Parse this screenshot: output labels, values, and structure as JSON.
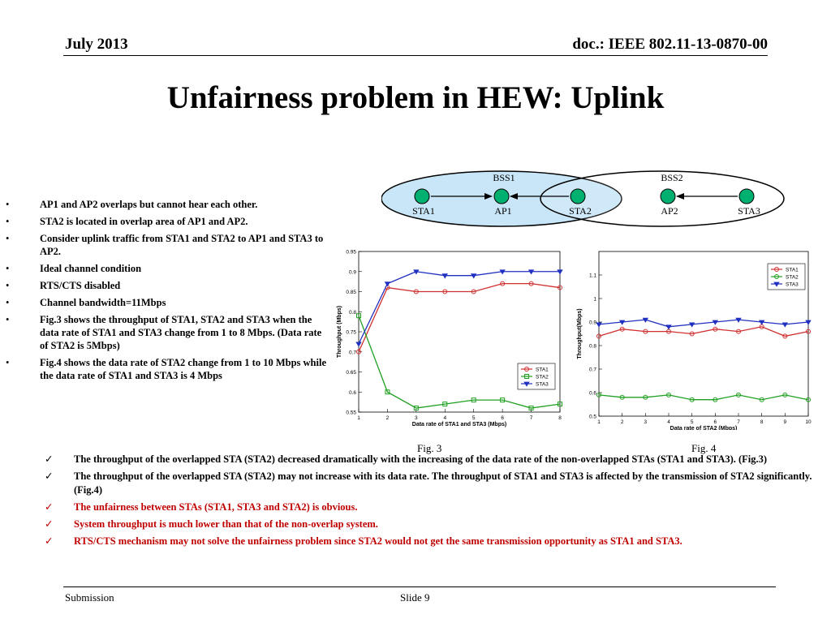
{
  "header": {
    "date": "July 2013",
    "doc": "doc.: IEEE 802.11-13-0870-00"
  },
  "title": "Unfairness problem in HEW: Uplink",
  "diagram": {
    "bss_labels": [
      "BSS1",
      "BSS2"
    ],
    "nodes": [
      "STA1",
      "AP1",
      "STA2",
      "AP2",
      "STA3"
    ],
    "node_color": "#00b070"
  },
  "bullets": [
    "AP1 and AP2 overlaps but cannot hear each other.",
    "STA2 is located in overlap area of AP1 and AP2.",
    "Consider uplink traffic from STA1 and STA2 to AP1 and STA3 to AP2.",
    "Ideal channel condition",
    "RTS/CTS disabled",
    "Channel bandwidth=11Mbps",
    "Fig.3 shows the throughput of STA1, STA2 and STA3 when the data rate of STA1 and STA3 change from 1 to 8 Mbps. (Data rate of STA2 is 5Mbps)",
    "Fig.4 shows the data rate of STA2 change from 1 to 10 Mbps while the data rate of STA1 and STA3 is 4 Mbps"
  ],
  "chart_data": [
    {
      "type": "line",
      "xlabel": "Data rate of STA1 and STA3 (Mbps)",
      "ylabel": "Throughput (Mbps)",
      "x": [
        1,
        2,
        3,
        4,
        5,
        6,
        7,
        8
      ],
      "xticks": [
        "1",
        "2",
        "3",
        "4",
        "5",
        "6",
        "7",
        "8"
      ],
      "yticks": [
        "0.55",
        "0.6",
        "0.65",
        "0.7",
        "0.75",
        "0.8",
        "0.85",
        "0.9",
        "0.95"
      ],
      "xlim": [
        1,
        8
      ],
      "ylim": [
        0.55,
        0.95
      ],
      "legend_position": "bottom-right",
      "series": [
        {
          "name": "STA1",
          "color": "#d03030",
          "marker": "circle",
          "values": [
            0.7,
            0.86,
            0.85,
            0.85,
            0.85,
            0.87,
            0.87,
            0.86
          ]
        },
        {
          "name": "STA2",
          "color": "#20a020",
          "marker": "square",
          "values": [
            0.79,
            0.6,
            0.56,
            0.57,
            0.58,
            0.58,
            0.56,
            0.57
          ]
        },
        {
          "name": "STA3",
          "color": "#2030c0",
          "marker": "triangle",
          "values": [
            0.72,
            0.87,
            0.9,
            0.89,
            0.89,
            0.9,
            0.9,
            0.9
          ]
        }
      ],
      "caption": "Fig. 3"
    },
    {
      "type": "line",
      "xlabel": "Data rate of STA2 (Mbps)",
      "ylabel": "Throughput(Mbps)",
      "x": [
        1,
        2,
        3,
        4,
        5,
        6,
        7,
        8,
        9,
        10
      ],
      "xticks": [
        "1",
        "2",
        "3",
        "4",
        "5",
        "6",
        "7",
        "8",
        "9",
        "10"
      ],
      "yticks": [
        "0.5",
        "0.6",
        "0.7",
        "0.8",
        "0.9",
        "1",
        "1.1"
      ],
      "xlim": [
        1,
        10
      ],
      "ylim": [
        0.5,
        1.2
      ],
      "legend_position": "top-right",
      "series": [
        {
          "name": "STA1",
          "color": "#d03030",
          "marker": "circle",
          "values": [
            0.84,
            0.87,
            0.86,
            0.86,
            0.85,
            0.87,
            0.86,
            0.88,
            0.84,
            0.86
          ]
        },
        {
          "name": "STA2",
          "color": "#20a020",
          "marker": "circle",
          "values": [
            0.59,
            0.58,
            0.58,
            0.59,
            0.57,
            0.57,
            0.59,
            0.57,
            0.59,
            0.57
          ]
        },
        {
          "name": "STA3",
          "color": "#2030c0",
          "marker": "triangle",
          "values": [
            0.89,
            0.9,
            0.91,
            0.88,
            0.89,
            0.9,
            0.91,
            0.9,
            0.89,
            0.9
          ]
        }
      ],
      "caption": "Fig. 4"
    }
  ],
  "findings": [
    {
      "text": "The throughput of the overlapped STA (STA2)  decreased dramatically with the increasing of the data rate of the non-overlapped STAs (STA1 and STA3). (Fig.3)",
      "color": "black"
    },
    {
      "text": "The throughput of the overlapped STA (STA2) may not increase with its data rate. The throughput of STA1 and STA3 is affected by the transmission of STA2 significantly. (Fig.4)",
      "color": "black"
    },
    {
      "text": "The unfairness between STAs (STA1, STA3 and STA2) is obvious.",
      "color": "red"
    },
    {
      "text": "System throughput is much lower than that of the non-overlap system.",
      "color": "red"
    },
    {
      "text": "RTS/CTS mechanism may not solve the unfairness problem since STA2 would not get the same transmission opportunity as STA1 and STA3.",
      "color": "red"
    }
  ],
  "footer": {
    "left": "Submission",
    "center": "Slide 9"
  }
}
